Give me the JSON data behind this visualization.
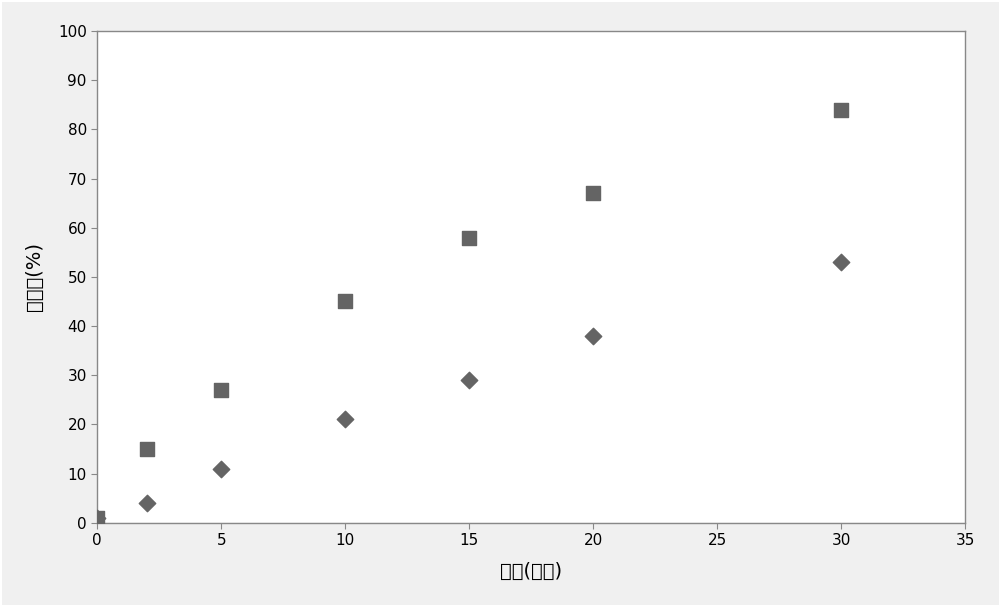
{
  "squares_x": [
    0,
    2,
    5,
    10,
    15,
    20,
    30
  ],
  "squares_y": [
    1,
    15,
    27,
    45,
    58,
    67,
    84
  ],
  "diamonds_x": [
    0,
    2,
    5,
    10,
    15,
    20,
    30
  ],
  "diamonds_y": [
    1,
    4,
    11,
    21,
    29,
    38,
    53
  ],
  "marker_color": "#646464",
  "xlabel": "时间(分钟)",
  "ylabel": "去除率(%)",
  "xlim": [
    0,
    35
  ],
  "ylim": [
    0,
    100
  ],
  "xticks": [
    0,
    5,
    10,
    15,
    20,
    25,
    30,
    35
  ],
  "yticks": [
    0,
    10,
    20,
    30,
    40,
    50,
    60,
    70,
    80,
    90,
    100
  ],
  "square_marker_size": 90,
  "diamond_marker_size": 70,
  "background_color": "#f0f0f0",
  "plot_bg_color": "#ffffff",
  "border_color": "#888888",
  "font_size_label": 14,
  "font_size_tick": 11
}
